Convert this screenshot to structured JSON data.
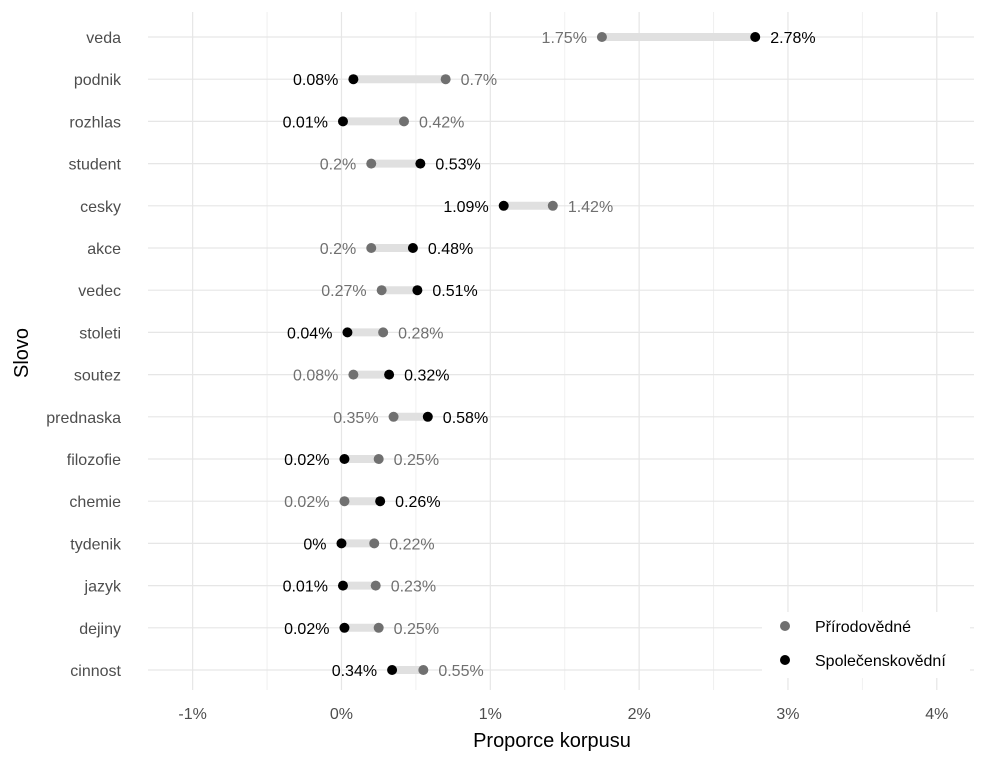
{
  "chart_data": {
    "type": "dumbbell",
    "xlabel": "Proporce korpusu",
    "ylabel": "Slovo",
    "xlim": [
      -1.3,
      4.25
    ],
    "x_ticks": [
      -1,
      0,
      1,
      2,
      3,
      4
    ],
    "x_tick_labels": [
      "-1%",
      "0%",
      "1%",
      "2%",
      "3%",
      "4%"
    ],
    "grid": true,
    "legend_position": "bottom-right",
    "categories": [
      "veda",
      "podnik",
      "rozhlas",
      "student",
      "cesky",
      "akce",
      "vedec",
      "stoleti",
      "soutez",
      "prednaska",
      "filozofie",
      "chemie",
      "tydenik",
      "jazyk",
      "dejiny",
      "cinnost"
    ],
    "series": [
      {
        "name": "Přírodovědné",
        "color": "#707070",
        "values": [
          1.75,
          0.7,
          0.42,
          0.2,
          1.42,
          0.2,
          0.27,
          0.28,
          0.08,
          0.35,
          0.25,
          0.02,
          0.22,
          0.23,
          0.25,
          0.55
        ],
        "labels": [
          "1.75%",
          "0.7%",
          "0.42%",
          "0.2%",
          "1.42%",
          "0.2%",
          "0.27%",
          "0.28%",
          "0.08%",
          "0.35%",
          "0.25%",
          "0.02%",
          "0.22%",
          "0.23%",
          "0.25%",
          "0.55%"
        ]
      },
      {
        "name": "Společenskovědní",
        "color": "#000000",
        "values": [
          2.78,
          0.08,
          0.01,
          0.53,
          1.09,
          0.48,
          0.51,
          0.04,
          0.32,
          0.58,
          0.02,
          0.26,
          0.0,
          0.01,
          0.02,
          0.34
        ],
        "labels": [
          "2.78%",
          "0.08%",
          "0.01%",
          "0.53%",
          "1.09%",
          "0.48%",
          "0.51%",
          "0.04%",
          "0.32%",
          "0.58%",
          "0.02%",
          "0.26%",
          "0%",
          "0.01%",
          "0.02%",
          "0.34%"
        ]
      }
    ],
    "connector_color": "#e0e0e0"
  }
}
